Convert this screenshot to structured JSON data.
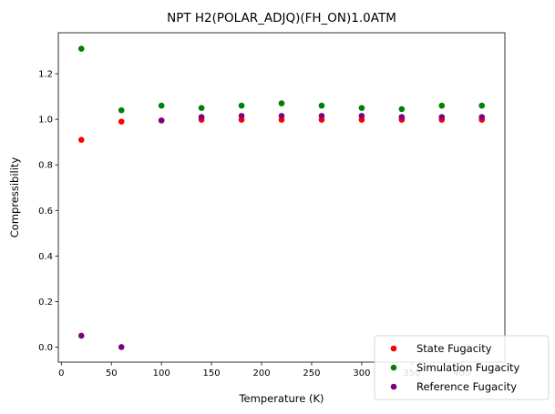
{
  "chart_data": {
    "type": "scatter",
    "title": "NPT H2(POLAR_ADJQ)(FH_ON)1.0ATM",
    "xlabel": "Temperature (K)",
    "ylabel": "Compressibility",
    "xlim": [
      -3,
      443
    ],
    "ylim": [
      -0.066,
      1.38
    ],
    "xticks": [
      0,
      50,
      100,
      150,
      200,
      250,
      300,
      350,
      400
    ],
    "yticks": [
      0.0,
      0.2,
      0.4,
      0.6,
      0.8,
      1.0,
      1.2
    ],
    "ytick_labels": [
      "0.0",
      "0.2",
      "0.4",
      "0.6",
      "0.8",
      "1.0",
      "1.2"
    ],
    "grid": false,
    "legend_position": "bottom-right",
    "series": [
      {
        "name": "State Fugacity",
        "color": "#ff0000",
        "x": [
          20,
          60,
          100,
          140,
          180,
          220,
          260,
          300,
          340,
          380,
          420
        ],
        "y": [
          0.91,
          0.99,
          0.995,
          0.998,
          0.998,
          0.998,
          0.998,
          0.998,
          0.998,
          0.998,
          0.998
        ]
      },
      {
        "name": "Simulation Fugacity",
        "color": "#008000",
        "x": [
          20,
          60,
          100,
          140,
          180,
          220,
          260,
          300,
          340,
          380,
          420
        ],
        "y": [
          1.31,
          1.04,
          1.06,
          1.05,
          1.06,
          1.07,
          1.06,
          1.05,
          1.045,
          1.06,
          1.06
        ]
      },
      {
        "name": "Reference Fugacity",
        "color": "#800080",
        "x": [
          20,
          60,
          100,
          140,
          180,
          220,
          260,
          300,
          340,
          380,
          420
        ],
        "y": [
          0.05,
          0.0,
          0.995,
          1.01,
          1.015,
          1.015,
          1.015,
          1.015,
          1.01,
          1.01,
          1.01
        ]
      }
    ]
  }
}
